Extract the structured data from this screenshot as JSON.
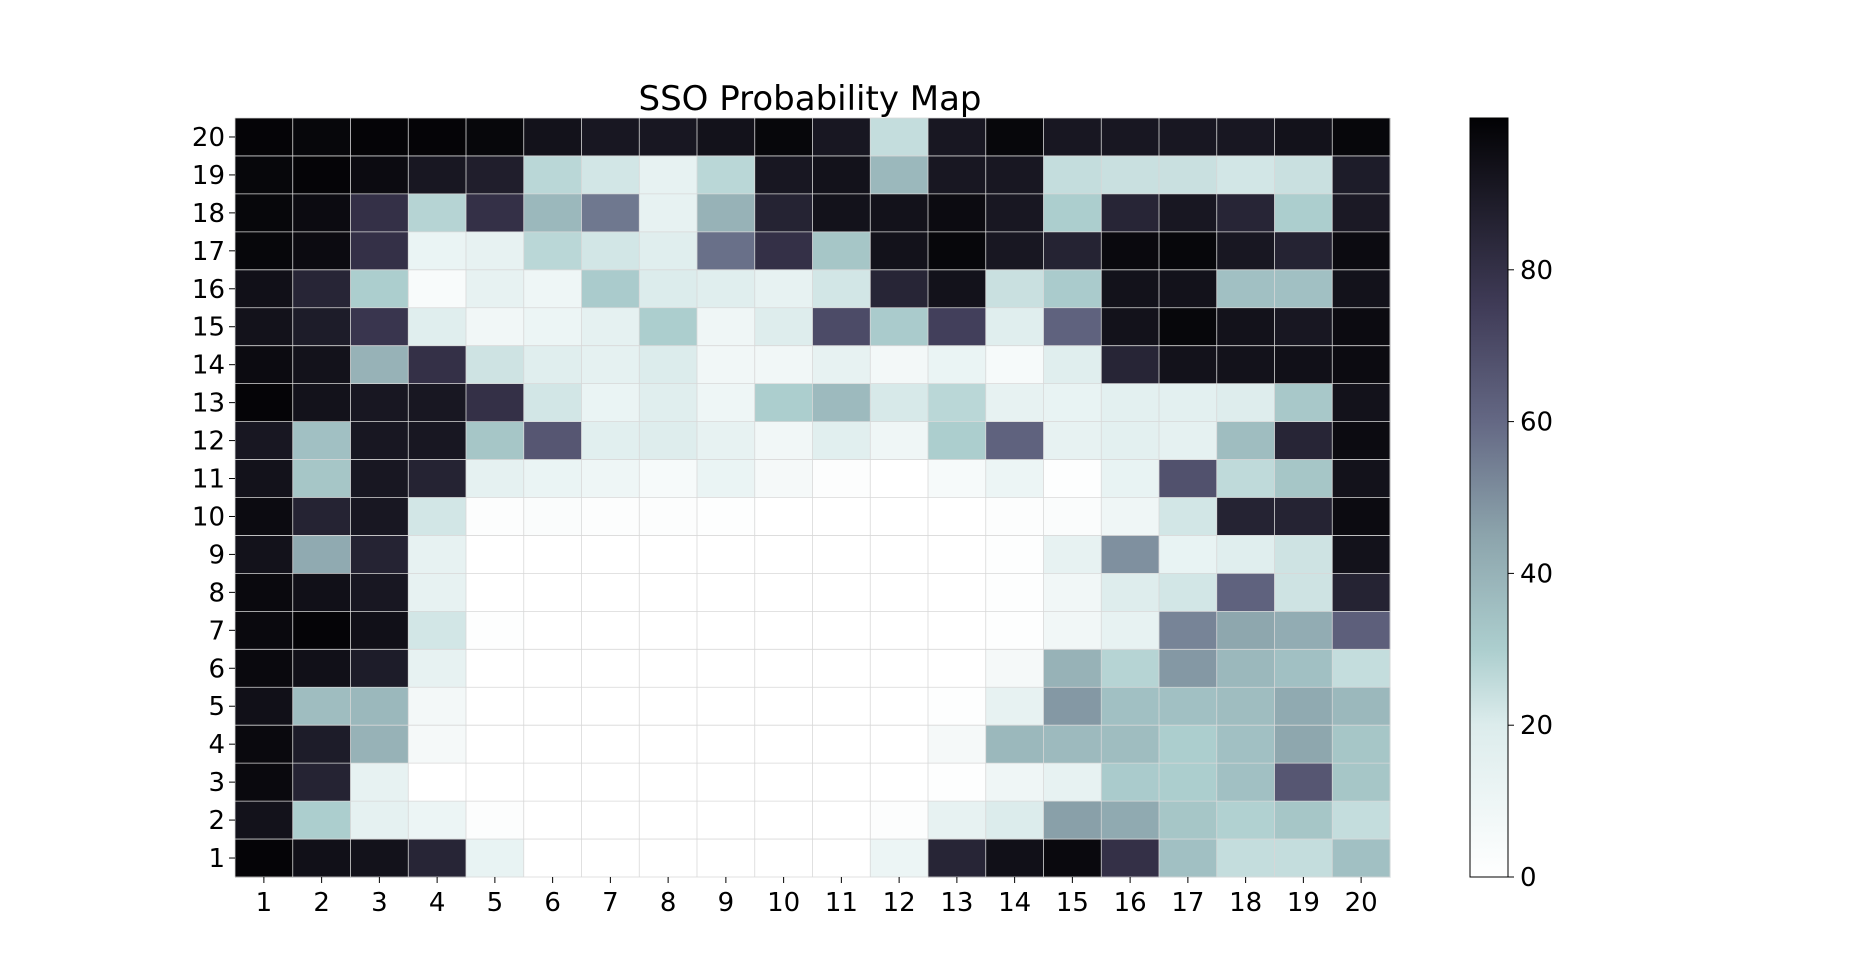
{
  "chart_data": {
    "type": "heatmap",
    "title": "SSO Probability Map",
    "xlabel": "",
    "ylabel": "",
    "x": [
      1,
      2,
      3,
      4,
      5,
      6,
      7,
      8,
      9,
      10,
      11,
      12,
      13,
      14,
      15,
      16,
      17,
      18,
      19,
      20
    ],
    "y": [
      1,
      2,
      3,
      4,
      5,
      6,
      7,
      8,
      9,
      10,
      11,
      12,
      13,
      14,
      15,
      16,
      17,
      18,
      19,
      20
    ],
    "colormap": "bone_r",
    "zlim": [
      0,
      100
    ],
    "colorbar_ticks": [
      0,
      20,
      40,
      60,
      80
    ],
    "grid": true,
    "values_rows_top_to_bottom": [
      [
        99,
        98,
        99,
        99,
        98,
        93,
        91,
        91,
        93,
        98,
        91,
        25,
        91,
        98,
        91,
        91,
        91,
        91,
        93,
        98
      ],
      [
        98,
        99,
        96,
        91,
        88,
        27,
        22,
        14,
        27,
        91,
        93,
        38,
        91,
        91,
        25,
        24,
        24,
        22,
        24,
        89
      ],
      [
        98,
        96,
        80,
        28,
        80,
        38,
        56,
        14,
        40,
        86,
        93,
        93,
        96,
        91,
        30,
        85,
        91,
        85,
        30,
        90
      ],
      [
        98,
        96,
        80,
        12,
        14,
        27,
        22,
        18,
        58,
        80,
        33,
        93,
        98,
        91,
        86,
        97,
        98,
        91,
        86,
        96
      ],
      [
        94,
        85,
        30,
        4,
        14,
        10,
        31,
        20,
        18,
        14,
        22,
        85,
        93,
        24,
        31,
        93,
        93,
        35,
        35,
        93
      ],
      [
        93,
        89,
        78,
        18,
        8,
        11,
        15,
        30,
        9,
        19,
        70,
        31,
        74,
        18,
        62,
        93,
        98,
        93,
        91,
        96
      ],
      [
        96,
        93,
        40,
        80,
        23,
        18,
        15,
        20,
        8,
        8,
        14,
        7,
        12,
        5,
        18,
        85,
        93,
        93,
        94,
        96
      ],
      [
        99,
        93,
        91,
        91,
        80,
        22,
        12,
        18,
        10,
        30,
        37,
        21,
        27,
        14,
        13,
        16,
        16,
        19,
        32,
        93
      ],
      [
        91,
        35,
        91,
        91,
        33,
        66,
        17,
        19,
        14,
        8,
        17,
        9,
        30,
        62,
        14,
        16,
        15,
        36,
        85,
        96
      ],
      [
        93,
        33,
        91,
        86,
        15,
        12,
        10,
        5,
        12,
        6,
        2,
        0,
        5,
        11,
        1,
        13,
        68,
        26,
        33,
        93
      ],
      [
        96,
        86,
        91,
        22,
        2,
        3,
        2,
        2,
        1,
        0,
        0,
        0,
        0,
        2,
        3,
        9,
        22,
        86,
        86,
        96
      ],
      [
        93,
        43,
        86,
        14,
        0,
        0,
        0,
        0,
        0,
        0,
        0,
        0,
        0,
        1,
        14,
        50,
        13,
        18,
        23,
        93
      ],
      [
        97,
        94,
        91,
        14,
        0,
        0,
        0,
        0,
        0,
        0,
        0,
        0,
        0,
        1,
        8,
        19,
        22,
        62,
        23,
        86
      ],
      [
        97,
        99,
        94,
        22,
        1,
        0,
        0,
        0,
        0,
        0,
        0,
        0,
        0,
        1,
        8,
        14,
        53,
        44,
        42,
        63
      ],
      [
        97,
        94,
        89,
        14,
        0,
        0,
        0,
        0,
        0,
        0,
        0,
        0,
        0,
        6,
        40,
        28,
        48,
        38,
        35,
        25
      ],
      [
        94,
        36,
        38,
        7,
        0,
        0,
        0,
        0,
        0,
        0,
        0,
        0,
        1,
        14,
        48,
        35,
        35,
        36,
        43,
        38
      ],
      [
        97,
        89,
        40,
        6,
        0,
        0,
        0,
        0,
        0,
        0,
        0,
        0,
        6,
        38,
        37,
        36,
        30,
        35,
        44,
        33
      ],
      [
        97,
        86,
        14,
        0,
        0,
        0,
        0,
        0,
        0,
        0,
        0,
        0,
        1,
        9,
        14,
        31,
        30,
        35,
        66,
        33
      ],
      [
        93,
        30,
        15,
        11,
        2,
        0,
        0,
        0,
        0,
        0,
        0,
        2,
        14,
        20,
        46,
        43,
        33,
        29,
        33,
        25
      ],
      [
        99,
        94,
        93,
        85,
        13,
        0,
        0,
        0,
        0,
        0,
        0,
        11,
        85,
        94,
        97,
        80,
        35,
        25,
        25,
        35
      ]
    ]
  }
}
